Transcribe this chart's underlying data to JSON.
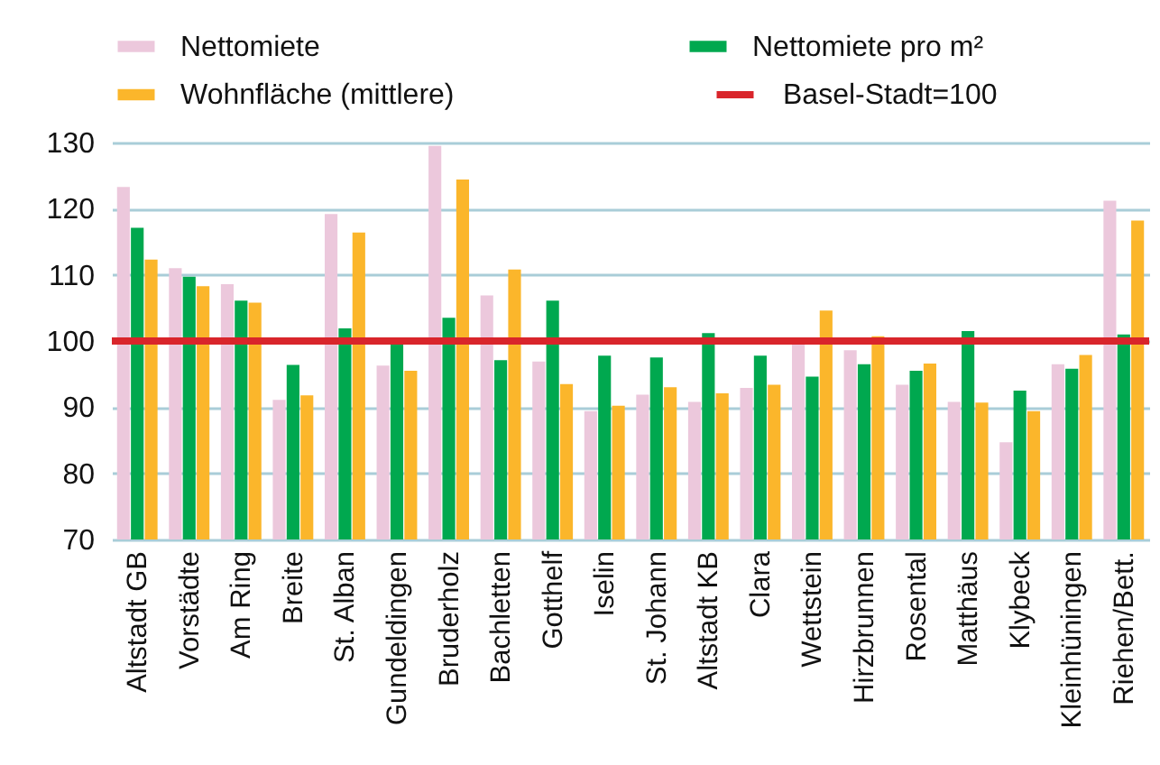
{
  "chart_data": {
    "type": "bar",
    "categories": [
      "Altstadt GB",
      "Vorstädte",
      "Am Ring",
      "Breite",
      "St. Alban",
      "Gundeldingen",
      "Bruderholz",
      "Bachletten",
      "Gotthelf",
      "Iselin",
      "St. Johann",
      "Altstadt KB",
      "Clara",
      "Wettstein",
      "Hirzbrunnen",
      "Rosental",
      "Matthäus",
      "Klybeck",
      "Kleinhüningen",
      "Riehen/Bett."
    ],
    "series": [
      {
        "name": "Nettomiete",
        "color": "#ecc8dc",
        "values": [
          123.3,
          111.0,
          108.6,
          91.1,
          119.2,
          96.3,
          129.5,
          106.9,
          96.9,
          89.4,
          91.9,
          90.8,
          92.9,
          99.6,
          98.6,
          93.4,
          90.8,
          84.7,
          96.5,
          121.2
        ]
      },
      {
        "name": "Nettomiete pro m²",
        "color": "#00a84f",
        "values": [
          117.1,
          109.7,
          106.1,
          96.4,
          101.9,
          99.8,
          103.5,
          97.1,
          106.1,
          97.8,
          97.5,
          101.2,
          97.8,
          94.6,
          96.5,
          95.5,
          101.5,
          92.5,
          95.8,
          101.0
        ]
      },
      {
        "name": "Wohnfläche (mittlere)",
        "color": "#fbb62b",
        "values": [
          112.3,
          108.3,
          105.8,
          91.8,
          116.4,
          95.5,
          124.4,
          110.8,
          93.5,
          90.2,
          93.0,
          92.1,
          93.4,
          104.6,
          100.7,
          96.6,
          90.7,
          89.4,
          97.9,
          118.2
        ]
      }
    ],
    "ylim": [
      70,
      130
    ],
    "yticks": [
      70,
      80,
      90,
      100,
      110,
      120,
      130
    ],
    "ref_lines": [
      {
        "axis": "y",
        "value": 100,
        "label": "Basel-Stadt=100",
        "color": "#d9252b"
      }
    ],
    "grid": "y",
    "legend": "top"
  }
}
